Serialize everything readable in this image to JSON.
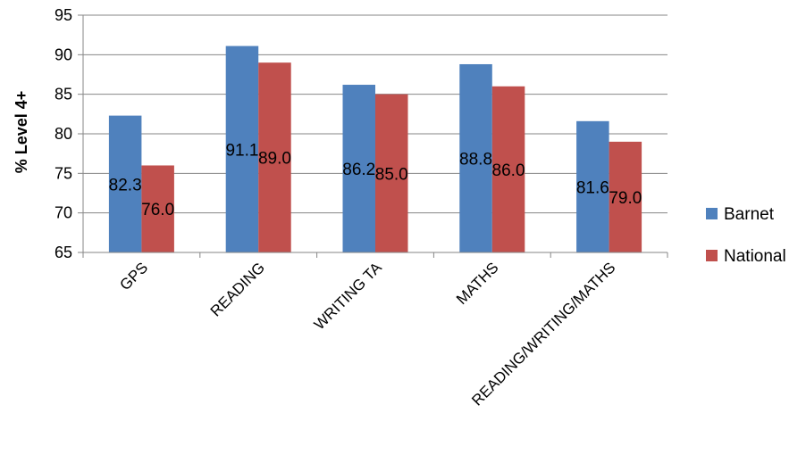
{
  "chart_data": {
    "type": "bar",
    "title": "",
    "xlabel": "",
    "ylabel": "% Level 4+",
    "ylim": [
      65,
      95
    ],
    "yticks": [
      65,
      70,
      75,
      80,
      85,
      90,
      95
    ],
    "grid": true,
    "legend_position": "right",
    "categories": [
      "GPS",
      "READING",
      "WRITING TA",
      "MATHS",
      "READING/WRITING/MATHS"
    ],
    "series": [
      {
        "name": "Barnet",
        "color": "#4f81bd",
        "values": [
          82.3,
          91.1,
          86.2,
          88.8,
          81.6
        ],
        "labels": [
          "82.3",
          "91.1",
          "86.2",
          "88.8",
          "81.6"
        ]
      },
      {
        "name": "National",
        "color": "#c0504d",
        "values": [
          76.0,
          89.0,
          85.0,
          86.0,
          79.0
        ],
        "labels": [
          "76.0",
          "89.0",
          "85.0",
          "86.0",
          "79.0"
        ]
      }
    ]
  }
}
